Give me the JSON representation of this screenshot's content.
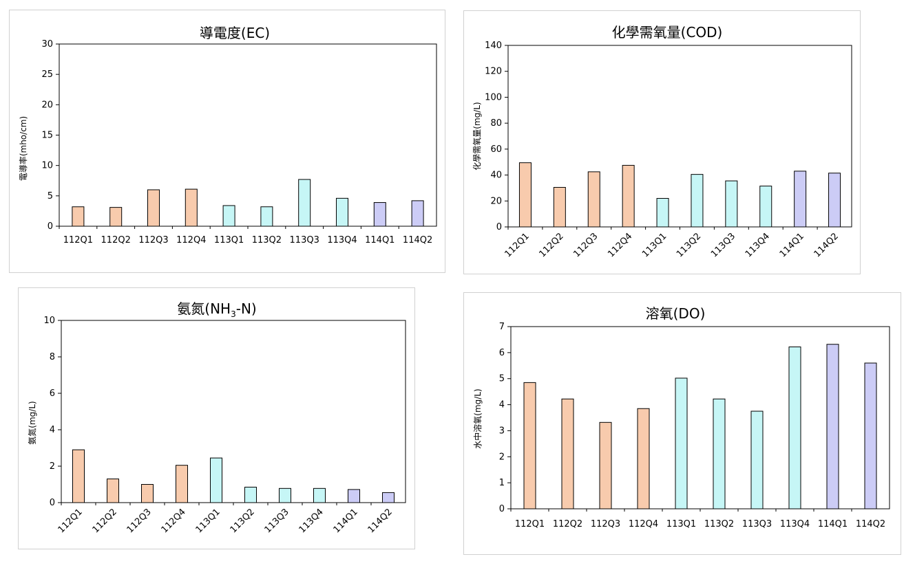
{
  "colors": {
    "112": "#f8cbad",
    "113": "#c6f6f6",
    "114": "#ccccf6",
    "stroke": "#000000"
  },
  "chart_data": [
    {
      "id": "ec",
      "type": "bar",
      "title": "導電度(EC)",
      "ylabel": "電導率(mho/cm)",
      "categories": [
        "112Q1",
        "112Q2",
        "112Q3",
        "112Q4",
        "113Q1",
        "113Q2",
        "113Q3",
        "113Q4",
        "114Q1",
        "114Q2"
      ],
      "values": [
        3.2,
        3.1,
        6.0,
        6.1,
        3.4,
        3.2,
        7.7,
        4.6,
        3.9,
        4.2
      ],
      "ylim": [
        0,
        30
      ],
      "yticks": [
        0,
        5,
        10,
        15,
        20,
        25,
        30
      ]
    },
    {
      "id": "cod",
      "type": "bar",
      "title": "化學需氧量(COD)",
      "ylabel": "化學需氧量(mg/L)",
      "categories": [
        "112Q1",
        "112Q2",
        "112Q3",
        "112Q4",
        "113Q1",
        "113Q2",
        "113Q3",
        "113Q4",
        "114Q1",
        "114Q2"
      ],
      "values": [
        49.5,
        30.5,
        42.5,
        47.5,
        22.0,
        40.5,
        35.5,
        31.5,
        43.0,
        41.5
      ],
      "ylim": [
        0,
        140
      ],
      "yticks": [
        0,
        20,
        40,
        60,
        80,
        100,
        120,
        140
      ]
    },
    {
      "id": "nh3",
      "type": "bar",
      "title": "氨氮(NH3-N)",
      "title_main": "氨氮(NH",
      "title_sub": "3",
      "title_end": "-N)",
      "ylabel": "氨氮(mg/L)",
      "categories": [
        "112Q1",
        "112Q2",
        "112Q3",
        "112Q4",
        "113Q1",
        "113Q2",
        "113Q3",
        "113Q4",
        "114Q1",
        "114Q2"
      ],
      "values": [
        2.9,
        1.3,
        1.0,
        2.05,
        2.45,
        0.85,
        0.78,
        0.78,
        0.72,
        0.55
      ],
      "ylim": [
        0,
        10
      ],
      "yticks": [
        0,
        2,
        4,
        6,
        8,
        10
      ]
    },
    {
      "id": "do",
      "type": "bar",
      "title": "溶氧(DO)",
      "ylabel": "水中溶氧(mg/L)",
      "categories": [
        "112Q1",
        "112Q2",
        "112Q3",
        "112Q4",
        "113Q1",
        "113Q2",
        "113Q3",
        "113Q4",
        "114Q1",
        "114Q2"
      ],
      "values": [
        4.85,
        4.22,
        3.32,
        3.85,
        5.02,
        4.22,
        3.75,
        6.22,
        6.32,
        5.6
      ],
      "ylim": [
        0,
        7
      ],
      "yticks": [
        0,
        1,
        2,
        3,
        4,
        5,
        6,
        7
      ]
    }
  ]
}
